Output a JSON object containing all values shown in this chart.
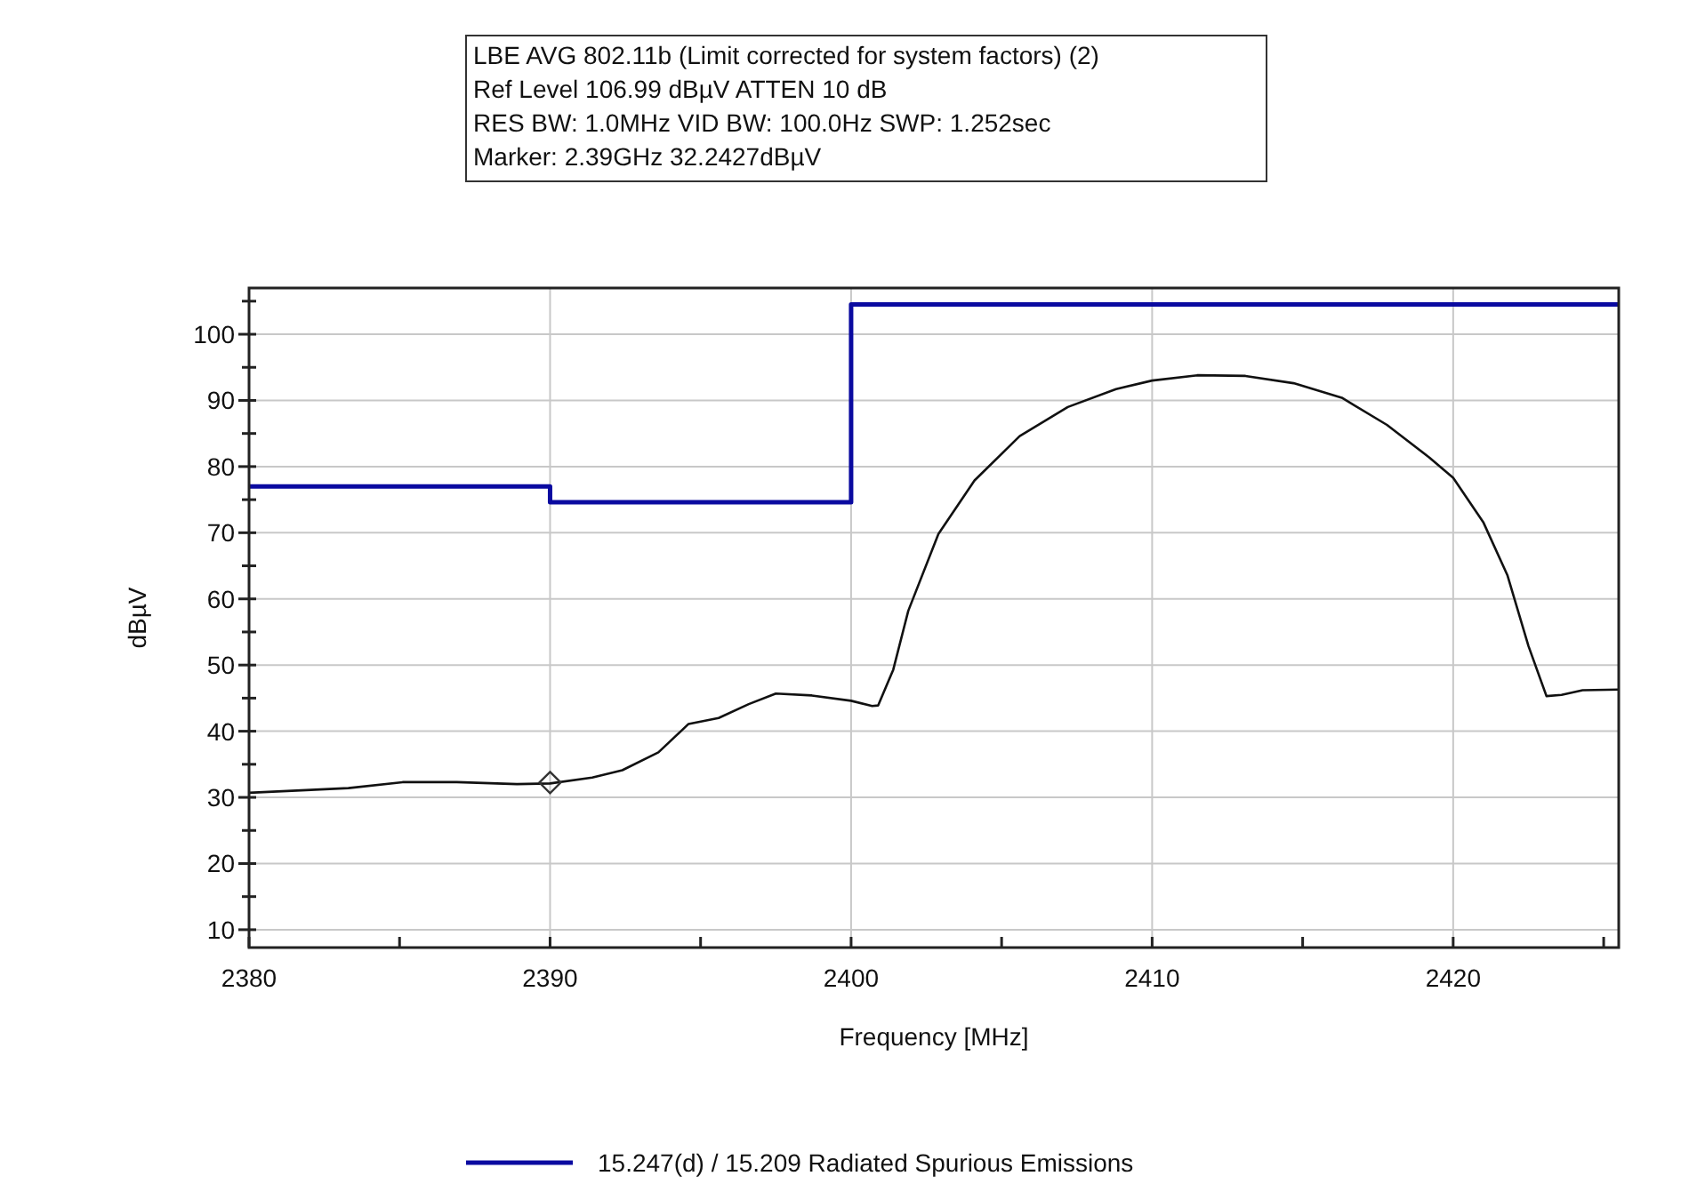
{
  "chart_data": {
    "type": "line",
    "xlabel": "Frequency [MHz]",
    "ylabel": "dBµV",
    "annotations": [
      "LBE AVG 802.11b (Limit corrected for system factors) (2)",
      "Ref Level 106.99 dBµV    ATTEN 10 dB",
      "RES BW: 1.0MHz  VID BW: 100.0Hz  SWP: 1.252sec",
      "Marker: 2.39GHz  32.2427dBµV"
    ],
    "xlim": [
      2380,
      2425.5
    ],
    "ylim": [
      7.3,
      106.99
    ],
    "xticks": [
      2380,
      {
        "value": 2385,
        "label": null
      },
      2390,
      {
        "value": 2395,
        "label": null
      },
      2400,
      {
        "value": 2405,
        "label": null
      },
      2410,
      {
        "value": 2415,
        "label": null
      },
      2420,
      {
        "value": 2425,
        "label": null
      }
    ],
    "yticks": [
      10,
      {
        "value": 15,
        "label": null
      },
      20,
      {
        "value": 25,
        "label": null
      },
      30,
      {
        "value": 35,
        "label": null
      },
      40,
      {
        "value": 45,
        "label": null
      },
      50,
      {
        "value": 55,
        "label": null
      },
      60,
      {
        "value": 65,
        "label": null
      },
      70,
      {
        "value": 75,
        "label": null
      },
      80,
      {
        "value": 85,
        "label": null
      },
      90,
      {
        "value": 95,
        "label": null
      },
      100,
      {
        "value": 105,
        "label": null
      }
    ],
    "grid": true,
    "legend": "bottom",
    "marker": "none",
    "line_style": "solid",
    "series": [
      {
        "name": "15.247(d) / 15.209 Radiated Spurious Emissions",
        "color": "#0a0aa0",
        "x": [
          2380,
          2390,
          2390,
          2400,
          2400,
          2425.5
        ],
        "values": [
          77.0,
          77.0,
          74.6,
          74.6,
          104.5,
          104.5
        ]
      },
      {
        "color": "#111111",
        "x": [
          2380,
          2381.9,
          2383.3,
          2385.1,
          2386.9,
          2388.9,
          2390,
          2391.4,
          2392.4,
          2393.6,
          2394.6,
          2395.6,
          2396.6,
          2397.5,
          2398.7,
          2400,
          2400.7,
          2400.9,
          2401.4,
          2401.9,
          2402.9,
          2404.1,
          2405.6,
          2407.2,
          2408.8,
          2410,
          2411.5,
          2413.1,
          2414.7,
          2416.3,
          2417.8,
          2419.2,
          2420,
          2421,
          2421.8,
          2422.5,
          2423.1,
          2423.6,
          2424.3,
          2425.5
        ],
        "values": [
          30.7,
          31.1,
          31.4,
          32.3,
          32.3,
          32.0,
          32.1,
          33.0,
          34.1,
          36.8,
          41.1,
          42.0,
          44.1,
          45.7,
          45.4,
          44.6,
          43.8,
          43.9,
          49.3,
          58.2,
          69.8,
          77.9,
          84.6,
          89.0,
          91.7,
          93.0,
          93.8,
          93.7,
          92.6,
          90.4,
          86.3,
          81.4,
          78.3,
          71.6,
          63.6,
          52.9,
          45.3,
          45.5,
          46.2,
          46.3
        ]
      },
      {
        "type": "scatter",
        "marker": "diamond",
        "color": "#333333",
        "x": [
          2390
        ],
        "values": [
          32.2427
        ]
      }
    ]
  }
}
